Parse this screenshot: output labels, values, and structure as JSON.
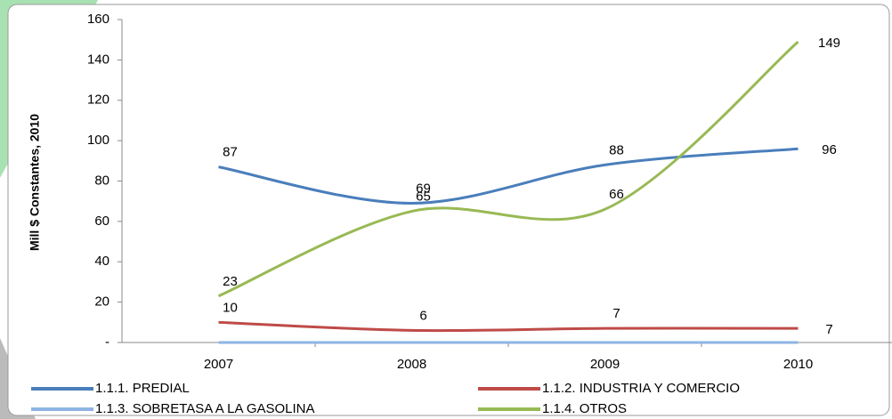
{
  "chart_data": {
    "type": "line",
    "y_label": "Mill $ Constantes, 2010",
    "categories": [
      "2007",
      "2008",
      "2009",
      "2010"
    ],
    "series": [
      {
        "name": "1.1.1. PREDIAL",
        "color": "#4a7ebb",
        "values": [
          87,
          69,
          88,
          96
        ]
      },
      {
        "name": "1.1.2. INDUSTRIA Y COMERCIO",
        "color": "#be4b48",
        "values": [
          10,
          6,
          7,
          7
        ]
      },
      {
        "name": "1.1.3. SOBRETASA A LA GASOLINA",
        "color": "#8eb4e3",
        "values": [
          0,
          0,
          0,
          0
        ]
      },
      {
        "name": "1.1.4. OTROS",
        "color": "#98b954",
        "values": [
          23,
          65,
          66,
          149
        ]
      }
    ],
    "ylim": [
      0,
      160
    ],
    "yticks": [
      {
        "value": 0,
        "label": "-"
      },
      20,
      40,
      60,
      80,
      100,
      120,
      140,
      160
    ],
    "data_labels": [
      true,
      true,
      false,
      true
    ],
    "legend": "bottom"
  }
}
